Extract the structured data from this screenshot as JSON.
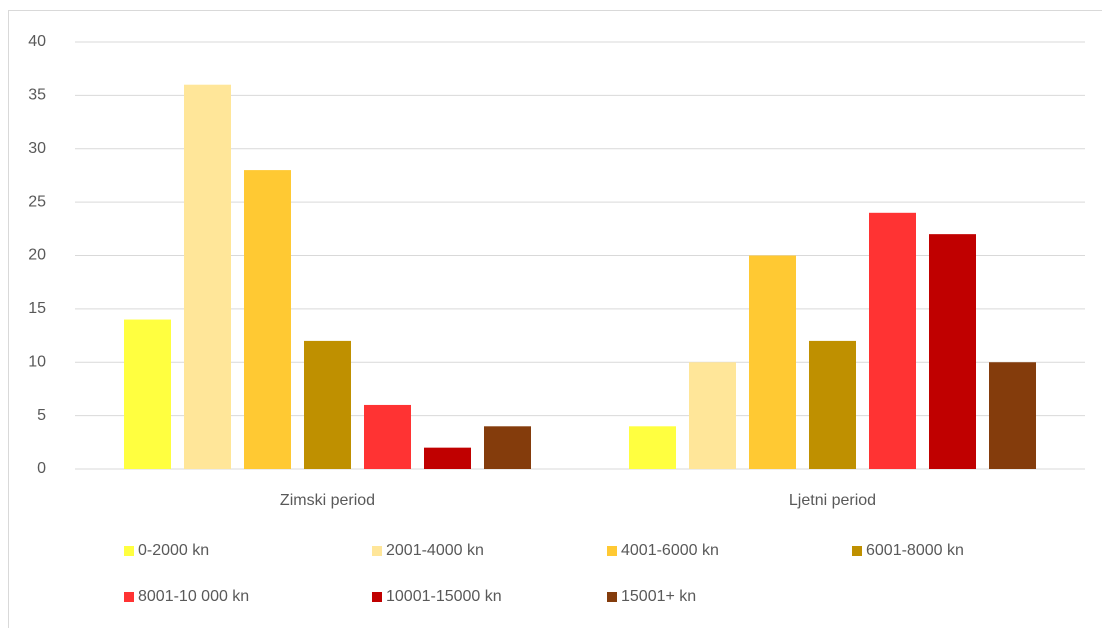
{
  "chart_data": {
    "type": "bar",
    "categories": [
      "Zimski period",
      "Ljetni period"
    ],
    "series": [
      {
        "name": "0-2000 kn",
        "color": "#ffff40",
        "values": [
          14,
          4
        ]
      },
      {
        "name": "2001-4000 kn",
        "color": "#ffe699",
        "values": [
          36,
          10
        ]
      },
      {
        "name": "4001-6000 kn",
        "color": "#ffc933",
        "values": [
          28,
          20
        ]
      },
      {
        "name": "6001-8000 kn",
        "color": "#bf9000",
        "values": [
          12,
          12
        ]
      },
      {
        "name": "8001-10 000 kn",
        "color": "#ff3333",
        "values": [
          6,
          24
        ]
      },
      {
        "name": "10001-15000 kn",
        "color": "#c00000",
        "values": [
          2,
          22
        ]
      },
      {
        "name": "15001+ kn",
        "color": "#843c0c",
        "values": [
          4,
          10
        ]
      }
    ],
    "ylim": [
      0,
      40
    ],
    "yticks": [
      0,
      5,
      10,
      15,
      20,
      25,
      30,
      35,
      40
    ],
    "grid": true,
    "legend": "bottom"
  }
}
